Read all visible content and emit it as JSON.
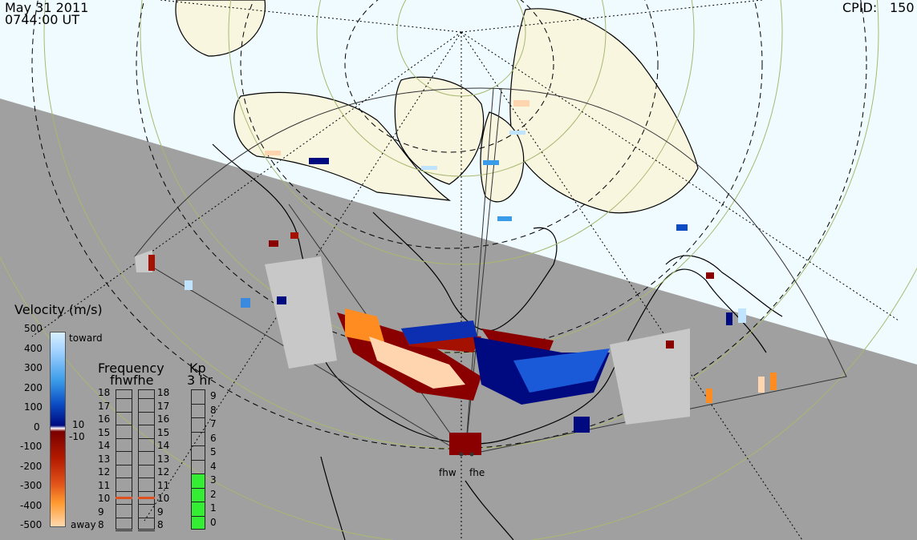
{
  "header": {
    "date": "May 31 2011",
    "time": "0744:00 UT",
    "cpid_label": "CPID:",
    "cpid_value": "150"
  },
  "velocity_legend": {
    "title": "Velocity (m/s)",
    "ticks": [
      "500",
      "400",
      "300",
      "200",
      "100",
      "0",
      "-100",
      "-200",
      "-300",
      "-400",
      "-500"
    ],
    "toward_label": "toward",
    "away_label": "away",
    "gs_pos": "10",
    "gs_neg": "-10",
    "colors": {
      "toward": "#0b4cc4",
      "away": "#b31a00",
      "ground_scatter": "#c8c8c8"
    }
  },
  "frequency_panel": {
    "title": "Frequency",
    "subtitle": "fhwfhe",
    "ticks": [
      "18",
      "17",
      "16",
      "15",
      "14",
      "13",
      "12",
      "11",
      "10",
      "9",
      "8"
    ],
    "fhw_freq_mhz": 10.5,
    "fhe_freq_mhz": 10.5,
    "marker_color": "#e05020"
  },
  "kp_panel": {
    "title": "Kp",
    "subtitle": "3 hr",
    "ticks": [
      "9",
      "8",
      "7",
      "6",
      "5",
      "4",
      "3",
      "2",
      "1",
      "0"
    ],
    "kp_value": 3,
    "fill_color": "#33ee33"
  },
  "stations": {
    "fhw": "fhw",
    "fhe": "fhe"
  },
  "map": {
    "land_color": "#f9f6e0",
    "ocean_color": "#f0fbff",
    "night_color": "#a0a0a0"
  }
}
